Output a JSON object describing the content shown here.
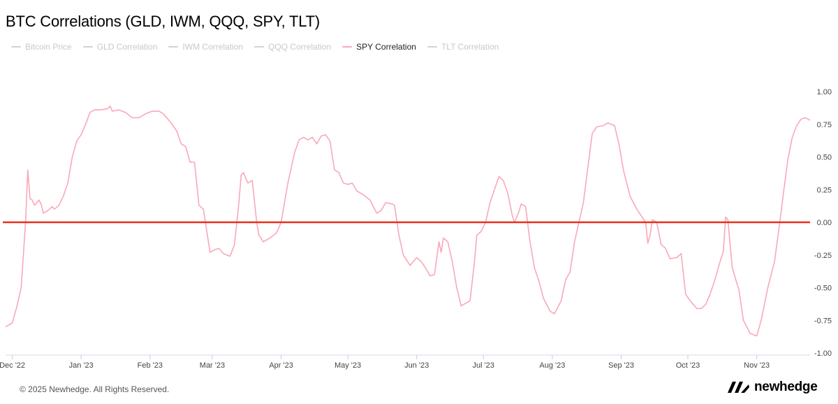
{
  "title": "BTC Correlations (GLD, IWM, QQQ, SPY, TLT)",
  "legend": [
    {
      "label": "Bitcoin Price",
      "active": false,
      "color": "#d3d3d3"
    },
    {
      "label": "GLD Correlation",
      "active": false,
      "color": "#d3d3d3"
    },
    {
      "label": "IWM Correlation",
      "active": false,
      "color": "#d3d3d3"
    },
    {
      "label": "QQQ Correlation",
      "active": false,
      "color": "#d3d3d3"
    },
    {
      "label": "SPY Correlation",
      "active": true,
      "color": "#f9a8b8"
    },
    {
      "label": "TLT Correlation",
      "active": false,
      "color": "#d3d3d3"
    }
  ],
  "footer": {
    "copyright": "© 2025 Newhedge. All Rights Reserved."
  },
  "brand": {
    "name": "newhedge",
    "icon": "newhedge-logo-icon"
  },
  "chart_data": {
    "type": "line",
    "x_unit": "date",
    "x_range": [
      "2022-11-28",
      "2023-11-25"
    ],
    "ylim": [
      -1.0,
      1.0
    ],
    "yticks": [
      "1.00",
      "0.75",
      "0.50",
      "0.25",
      "0.00",
      "-0.25",
      "-0.50",
      "-0.75",
      "-1.00"
    ],
    "ytick_values": [
      1.0,
      0.75,
      0.5,
      0.25,
      0.0,
      -0.25,
      -0.5,
      -0.75,
      -1.0
    ],
    "y_axis_side": "right",
    "xticks": [
      {
        "label": "Dec '22",
        "date": "2022-12-01"
      },
      {
        "label": "Jan '23",
        "date": "2023-01-01"
      },
      {
        "label": "Feb '23",
        "date": "2023-02-01"
      },
      {
        "label": "Mar '23",
        "date": "2023-03-01"
      },
      {
        "label": "Apr '23",
        "date": "2023-04-01"
      },
      {
        "label": "May '23",
        "date": "2023-05-01"
      },
      {
        "label": "Jun '23",
        "date": "2023-06-01"
      },
      {
        "label": "Jul '23",
        "date": "2023-07-01"
      },
      {
        "label": "Aug '23",
        "date": "2023-08-01"
      },
      {
        "label": "Sep '23",
        "date": "2023-09-01"
      },
      {
        "label": "Oct '23",
        "date": "2023-10-01"
      },
      {
        "label": "Nov '23",
        "date": "2023-11-01"
      }
    ],
    "reference_line": {
      "y": 0.0,
      "color": "#e8311a"
    },
    "series": [
      {
        "name": "SPY Correlation",
        "color": "#f9a8b8",
        "points": [
          [
            "2022-11-28",
            -0.8
          ],
          [
            "2022-12-01",
            -0.77
          ],
          [
            "2022-12-03",
            -0.65
          ],
          [
            "2022-12-05",
            -0.5
          ],
          [
            "2022-12-07",
            0.0
          ],
          [
            "2022-12-08",
            0.4
          ],
          [
            "2022-12-09",
            0.18
          ],
          [
            "2022-12-10",
            0.17
          ],
          [
            "2022-12-11",
            0.13
          ],
          [
            "2022-12-12",
            0.15
          ],
          [
            "2022-12-13",
            0.17
          ],
          [
            "2022-12-14",
            0.14
          ],
          [
            "2022-12-15",
            0.07
          ],
          [
            "2022-12-17",
            0.09
          ],
          [
            "2022-12-19",
            0.12
          ],
          [
            "2022-12-20",
            0.1
          ],
          [
            "2022-12-22",
            0.13
          ],
          [
            "2022-12-24",
            0.2
          ],
          [
            "2022-12-26",
            0.3
          ],
          [
            "2022-12-28",
            0.5
          ],
          [
            "2022-12-30",
            0.62
          ],
          [
            "2023-01-01",
            0.67
          ],
          [
            "2023-01-03",
            0.75
          ],
          [
            "2023-01-05",
            0.84
          ],
          [
            "2023-01-07",
            0.86
          ],
          [
            "2023-01-10",
            0.86
          ],
          [
            "2023-01-13",
            0.87
          ],
          [
            "2023-01-14",
            0.89
          ],
          [
            "2023-01-15",
            0.85
          ],
          [
            "2023-01-18",
            0.86
          ],
          [
            "2023-01-21",
            0.84
          ],
          [
            "2023-01-24",
            0.8
          ],
          [
            "2023-01-27",
            0.8
          ],
          [
            "2023-01-30",
            0.83
          ],
          [
            "2023-02-02",
            0.85
          ],
          [
            "2023-02-05",
            0.85
          ],
          [
            "2023-02-07",
            0.83
          ],
          [
            "2023-02-10",
            0.77
          ],
          [
            "2023-02-13",
            0.7
          ],
          [
            "2023-02-15",
            0.6
          ],
          [
            "2023-02-17",
            0.58
          ],
          [
            "2023-02-19",
            0.46
          ],
          [
            "2023-02-21",
            0.46
          ],
          [
            "2023-02-23",
            0.13
          ],
          [
            "2023-02-25",
            0.1
          ],
          [
            "2023-02-27",
            -0.12
          ],
          [
            "2023-02-28",
            -0.23
          ],
          [
            "2023-03-02",
            -0.21
          ],
          [
            "2023-03-04",
            -0.2
          ],
          [
            "2023-03-06",
            -0.24
          ],
          [
            "2023-03-09",
            -0.26
          ],
          [
            "2023-03-11",
            -0.17
          ],
          [
            "2023-03-13",
            0.15
          ],
          [
            "2023-03-14",
            0.36
          ],
          [
            "2023-03-15",
            0.38
          ],
          [
            "2023-03-17",
            0.3
          ],
          [
            "2023-03-19",
            0.32
          ],
          [
            "2023-03-21",
            0.0
          ],
          [
            "2023-03-22",
            -0.1
          ],
          [
            "2023-03-24",
            -0.15
          ],
          [
            "2023-03-27",
            -0.12
          ],
          [
            "2023-03-30",
            -0.08
          ],
          [
            "2023-04-01",
            0.0
          ],
          [
            "2023-04-04",
            0.3
          ],
          [
            "2023-04-07",
            0.53
          ],
          [
            "2023-04-09",
            0.63
          ],
          [
            "2023-04-11",
            0.65
          ],
          [
            "2023-04-13",
            0.63
          ],
          [
            "2023-04-15",
            0.65
          ],
          [
            "2023-04-17",
            0.6
          ],
          [
            "2023-04-19",
            0.66
          ],
          [
            "2023-04-21",
            0.67
          ],
          [
            "2023-04-23",
            0.62
          ],
          [
            "2023-04-25",
            0.4
          ],
          [
            "2023-04-27",
            0.38
          ],
          [
            "2023-04-29",
            0.3
          ],
          [
            "2023-05-01",
            0.29
          ],
          [
            "2023-05-03",
            0.3
          ],
          [
            "2023-05-05",
            0.24
          ],
          [
            "2023-05-08",
            0.21
          ],
          [
            "2023-05-11",
            0.17
          ],
          [
            "2023-05-14",
            0.07
          ],
          [
            "2023-05-16",
            0.09
          ],
          [
            "2023-05-18",
            0.15
          ],
          [
            "2023-05-21",
            0.14
          ],
          [
            "2023-05-22",
            0.13
          ],
          [
            "2023-05-24",
            -0.1
          ],
          [
            "2023-05-26",
            -0.25
          ],
          [
            "2023-05-29",
            -0.33
          ],
          [
            "2023-06-01",
            -0.27
          ],
          [
            "2023-06-03",
            -0.3
          ],
          [
            "2023-06-05",
            -0.35
          ],
          [
            "2023-06-07",
            -0.41
          ],
          [
            "2023-06-09",
            -0.4
          ],
          [
            "2023-06-11",
            -0.15
          ],
          [
            "2023-06-12",
            -0.23
          ],
          [
            "2023-06-13",
            -0.12
          ],
          [
            "2023-06-15",
            -0.15
          ],
          [
            "2023-06-17",
            -0.3
          ],
          [
            "2023-06-19",
            -0.5
          ],
          [
            "2023-06-21",
            -0.64
          ],
          [
            "2023-06-23",
            -0.62
          ],
          [
            "2023-06-25",
            -0.6
          ],
          [
            "2023-06-27",
            -0.3
          ],
          [
            "2023-06-28",
            -0.1
          ],
          [
            "2023-06-30",
            -0.07
          ],
          [
            "2023-07-02",
            0.0
          ],
          [
            "2023-07-04",
            0.15
          ],
          [
            "2023-07-07",
            0.3
          ],
          [
            "2023-07-08",
            0.35
          ],
          [
            "2023-07-10",
            0.32
          ],
          [
            "2023-07-12",
            0.22
          ],
          [
            "2023-07-14",
            0.05
          ],
          [
            "2023-07-15",
            0.0
          ],
          [
            "2023-07-17",
            0.08
          ],
          [
            "2023-07-18",
            0.14
          ],
          [
            "2023-07-20",
            0.12
          ],
          [
            "2023-07-22",
            -0.15
          ],
          [
            "2023-07-24",
            -0.35
          ],
          [
            "2023-07-26",
            -0.45
          ],
          [
            "2023-07-28",
            -0.58
          ],
          [
            "2023-07-31",
            -0.68
          ],
          [
            "2023-08-02",
            -0.7
          ],
          [
            "2023-08-05",
            -0.6
          ],
          [
            "2023-08-07",
            -0.44
          ],
          [
            "2023-08-09",
            -0.38
          ],
          [
            "2023-08-11",
            -0.15
          ],
          [
            "2023-08-13",
            0.0
          ],
          [
            "2023-08-15",
            0.15
          ],
          [
            "2023-08-17",
            0.42
          ],
          [
            "2023-08-19",
            0.68
          ],
          [
            "2023-08-21",
            0.73
          ],
          [
            "2023-08-24",
            0.74
          ],
          [
            "2023-08-26",
            0.76
          ],
          [
            "2023-08-29",
            0.74
          ],
          [
            "2023-08-31",
            0.6
          ],
          [
            "2023-09-02",
            0.4
          ],
          [
            "2023-09-05",
            0.2
          ],
          [
            "2023-09-08",
            0.1
          ],
          [
            "2023-09-10",
            0.05
          ],
          [
            "2023-09-12",
            0.0
          ],
          [
            "2023-09-13",
            -0.16
          ],
          [
            "2023-09-14",
            -0.1
          ],
          [
            "2023-09-15",
            0.02
          ],
          [
            "2023-09-17",
            0.0
          ],
          [
            "2023-09-19",
            -0.17
          ],
          [
            "2023-09-21",
            -0.2
          ],
          [
            "2023-09-23",
            -0.28
          ],
          [
            "2023-09-26",
            -0.27
          ],
          [
            "2023-09-28",
            -0.24
          ],
          [
            "2023-09-30",
            -0.55
          ],
          [
            "2023-10-02",
            -0.6
          ],
          [
            "2023-10-05",
            -0.66
          ],
          [
            "2023-10-07",
            -0.66
          ],
          [
            "2023-10-09",
            -0.63
          ],
          [
            "2023-10-11",
            -0.55
          ],
          [
            "2023-10-13",
            -0.45
          ],
          [
            "2023-10-15",
            -0.33
          ],
          [
            "2023-10-17",
            -0.22
          ],
          [
            "2023-10-18",
            0.04
          ],
          [
            "2023-10-19",
            0.02
          ],
          [
            "2023-10-21",
            -0.35
          ],
          [
            "2023-10-24",
            -0.52
          ],
          [
            "2023-10-26",
            -0.75
          ],
          [
            "2023-10-29",
            -0.85
          ],
          [
            "2023-11-01",
            -0.87
          ],
          [
            "2023-11-03",
            -0.75
          ],
          [
            "2023-11-06",
            -0.5
          ],
          [
            "2023-11-09",
            -0.3
          ],
          [
            "2023-11-11",
            -0.05
          ],
          [
            "2023-11-13",
            0.22
          ],
          [
            "2023-11-15",
            0.48
          ],
          [
            "2023-11-17",
            0.65
          ],
          [
            "2023-11-19",
            0.74
          ],
          [
            "2023-11-21",
            0.79
          ],
          [
            "2023-11-23",
            0.8
          ],
          [
            "2023-11-25",
            0.78
          ]
        ]
      }
    ]
  }
}
